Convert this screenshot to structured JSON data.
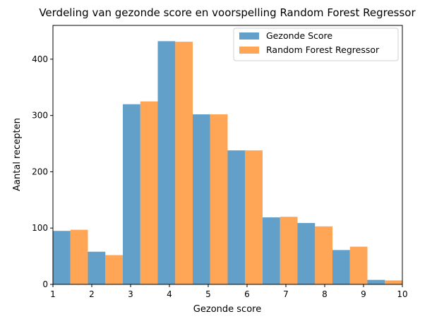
{
  "chart_data": {
    "type": "bar",
    "title": "Verdeling van gezonde score en voorspelling Random Forest Regressor",
    "xlabel": "Gezonde score",
    "ylabel": "Aantal recepten",
    "xlim": [
      1,
      10
    ],
    "ylim": [
      0,
      460
    ],
    "xticks": [
      1,
      2,
      3,
      4,
      5,
      6,
      7,
      8,
      9,
      10
    ],
    "yticks": [
      0,
      100,
      200,
      300,
      400
    ],
    "grid": false,
    "legend_position": "top-right",
    "bin_starts": [
      1.0,
      1.9,
      2.8,
      3.7,
      4.6,
      5.5,
      6.4,
      7.3,
      8.2,
      9.1
    ],
    "bin_width": 0.9,
    "series": [
      {
        "name": "Gezonde Score",
        "color": "#1f77b4",
        "values": [
          95,
          58,
          320,
          432,
          302,
          238,
          119,
          109,
          61,
          8
        ]
      },
      {
        "name": "Random Forest Regressor",
        "color": "#ff7f0e",
        "values": [
          97,
          52,
          325,
          431,
          302,
          238,
          120,
          103,
          67,
          7
        ]
      }
    ]
  }
}
